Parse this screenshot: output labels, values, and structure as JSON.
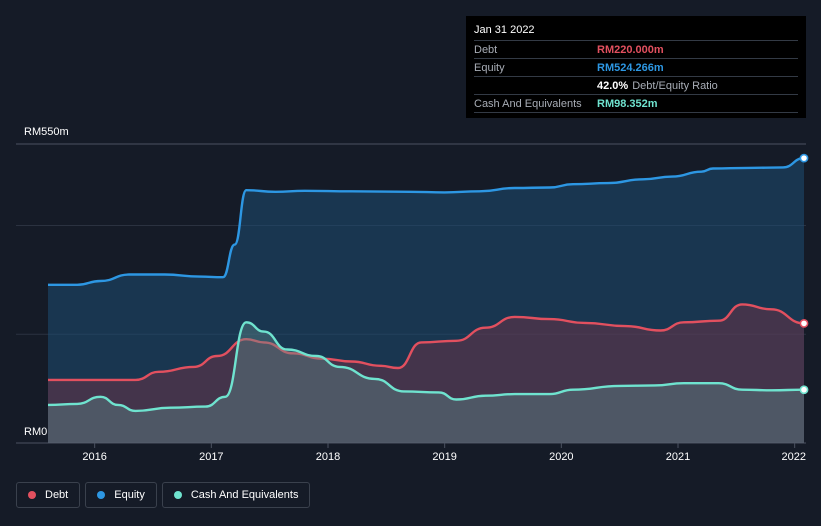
{
  "colors": {
    "background": "#151b27",
    "debt": "#e2505f",
    "equity": "#2d97e3",
    "cash": "#6fe3cf",
    "grid": "#2b3240"
  },
  "tooltip": {
    "date": "Jan 31 2022",
    "debt_label": "Debt",
    "debt_value": "RM220.000m",
    "equity_label": "Equity",
    "equity_value": "RM524.266m",
    "ratio_pct": "42.0%",
    "ratio_text": "Debt/Equity Ratio",
    "cash_label": "Cash And Equivalents",
    "cash_value": "RM98.352m"
  },
  "legend": [
    {
      "name": "debt",
      "label": "Debt",
      "color": "#e2505f"
    },
    {
      "name": "equity",
      "label": "Equity",
      "color": "#2d97e3"
    },
    {
      "name": "cash",
      "label": "Cash And Equivalents",
      "color": "#6fe3cf"
    }
  ],
  "chart_data": {
    "type": "area",
    "title": "",
    "xlabel": "",
    "ylabel": "",
    "y_top_label": "RM550m",
    "y_bottom_label": "RM0",
    "ylim": [
      0,
      550
    ],
    "xlim": [
      2015.6,
      2022.08
    ],
    "x_ticks": [
      2016,
      2017,
      2018,
      2019,
      2020,
      2021,
      2022
    ],
    "x_tick_labels": [
      "2016",
      "2017",
      "2018",
      "2019",
      "2020",
      "2021",
      "2022"
    ],
    "grid": true,
    "legend_position": "bottom-left",
    "series": [
      {
        "name": "Equity",
        "color": "#2d97e3",
        "points": [
          [
            2015.6,
            291
          ],
          [
            2015.85,
            291
          ],
          [
            2016.05,
            298
          ],
          [
            2016.3,
            310
          ],
          [
            2016.6,
            310
          ],
          [
            2016.9,
            306
          ],
          [
            2017.1,
            305
          ],
          [
            2017.2,
            365
          ],
          [
            2017.3,
            465
          ],
          [
            2017.55,
            462
          ],
          [
            2017.8,
            464
          ],
          [
            2018.2,
            463
          ],
          [
            2018.7,
            462
          ],
          [
            2019.0,
            461
          ],
          [
            2019.3,
            463
          ],
          [
            2019.6,
            469
          ],
          [
            2019.9,
            470
          ],
          [
            2020.1,
            476
          ],
          [
            2020.4,
            478
          ],
          [
            2020.7,
            485
          ],
          [
            2020.95,
            490
          ],
          [
            2021.2,
            499
          ],
          [
            2021.3,
            505
          ],
          [
            2021.6,
            506
          ],
          [
            2021.9,
            507
          ],
          [
            2022.08,
            524
          ]
        ]
      },
      {
        "name": "Debt",
        "color": "#e2505f",
        "points": [
          [
            2015.6,
            116
          ],
          [
            2016.0,
            116
          ],
          [
            2016.35,
            116
          ],
          [
            2016.55,
            131
          ],
          [
            2016.85,
            140
          ],
          [
            2017.05,
            160
          ],
          [
            2017.3,
            191
          ],
          [
            2017.45,
            185
          ],
          [
            2017.7,
            165
          ],
          [
            2017.95,
            155
          ],
          [
            2018.2,
            150
          ],
          [
            2018.45,
            142
          ],
          [
            2018.6,
            138
          ],
          [
            2018.8,
            185
          ],
          [
            2019.1,
            188
          ],
          [
            2019.35,
            212
          ],
          [
            2019.6,
            232
          ],
          [
            2019.9,
            228
          ],
          [
            2020.2,
            221
          ],
          [
            2020.55,
            215
          ],
          [
            2020.85,
            207
          ],
          [
            2021.05,
            222
          ],
          [
            2021.35,
            225
          ],
          [
            2021.55,
            255
          ],
          [
            2021.8,
            246
          ],
          [
            2022.08,
            220
          ]
        ]
      },
      {
        "name": "Cash And Equivalents",
        "color": "#6fe3cf",
        "points": [
          [
            2015.6,
            70
          ],
          [
            2015.85,
            72
          ],
          [
            2016.05,
            85
          ],
          [
            2016.2,
            70
          ],
          [
            2016.35,
            59
          ],
          [
            2016.65,
            65
          ],
          [
            2016.95,
            67
          ],
          [
            2017.12,
            85
          ],
          [
            2017.3,
            222
          ],
          [
            2017.45,
            205
          ],
          [
            2017.65,
            172
          ],
          [
            2017.9,
            160
          ],
          [
            2018.1,
            140
          ],
          [
            2018.4,
            118
          ],
          [
            2018.65,
            95
          ],
          [
            2018.95,
            93
          ],
          [
            2019.1,
            80
          ],
          [
            2019.35,
            87
          ],
          [
            2019.6,
            90
          ],
          [
            2019.9,
            90
          ],
          [
            2020.1,
            98
          ],
          [
            2020.5,
            105
          ],
          [
            2020.8,
            106
          ],
          [
            2021.05,
            110
          ],
          [
            2021.35,
            110
          ],
          [
            2021.55,
            98
          ],
          [
            2021.8,
            97
          ],
          [
            2022.08,
            98
          ]
        ]
      }
    ]
  }
}
